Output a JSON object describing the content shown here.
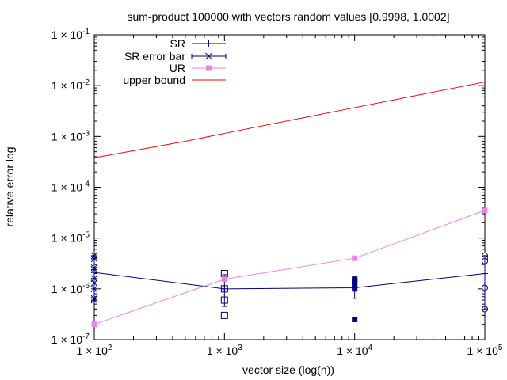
{
  "chart_data": {
    "type": "line",
    "title": "sum-product 100000 with vectors random values [0.9998, 1.0002]",
    "xlabel": "vector size (log(n))",
    "ylabel": "relative error log",
    "x_scale": "log",
    "y_scale": "log",
    "xlim": [
      100,
      100000
    ],
    "ylim": [
      1e-07,
      0.1
    ],
    "grid": false,
    "legend_position": "top-left",
    "x_ticks": [
      {
        "value": 100,
        "base": "1 × 10",
        "exp": "2"
      },
      {
        "value": 1000,
        "base": "1 × 10",
        "exp": "3"
      },
      {
        "value": 10000,
        "base": "1 × 10",
        "exp": "4"
      },
      {
        "value": 100000,
        "base": "1 × 10",
        "exp": "5"
      }
    ],
    "y_ticks": [
      {
        "value": 1e-07,
        "base": "1 × 10",
        "exp": "-7"
      },
      {
        "value": 1e-06,
        "base": "1 × 10",
        "exp": "-6"
      },
      {
        "value": 1e-05,
        "base": "1 × 10",
        "exp": "-5"
      },
      {
        "value": 0.0001,
        "base": "1 × 10",
        "exp": "-4"
      },
      {
        "value": 0.001,
        "base": "1 × 10",
        "exp": "-3"
      },
      {
        "value": 0.01,
        "base": "1 × 10",
        "exp": "-2"
      },
      {
        "value": 0.1,
        "base": "1 × 10",
        "exp": "-1"
      }
    ],
    "series": [
      {
        "name": "SR",
        "color": "#000080",
        "marker": "plus",
        "line": true,
        "x": [
          100,
          1000,
          10000,
          100000
        ],
        "y": [
          2.1e-06,
          1e-06,
          1.05e-06,
          2e-06
        ]
      },
      {
        "name": "SR error bar",
        "color": "#000080",
        "marker": "cross",
        "line": false,
        "error_bars": [
          {
            "x": 100,
            "y": 2.1e-06,
            "low": 6e-07,
            "high": 4.5e-06
          },
          {
            "x": 1000,
            "y": 1e-06,
            "low": 4.5e-07,
            "high": 1.9e-06
          },
          {
            "x": 10000,
            "y": 1.05e-06,
            "low": 6.5e-07,
            "high": 1.5e-06
          },
          {
            "x": 100000,
            "y": 2e-06,
            "low": 4e-07,
            "high": 4.5e-06
          }
        ]
      },
      {
        "name": "UR",
        "color": "#ee82ee",
        "marker": "filled-square",
        "line": true,
        "x": [
          100,
          1000,
          10000,
          100000
        ],
        "y": [
          2e-07,
          1.55e-06,
          4e-06,
          3.5e-05
        ]
      },
      {
        "name": "upper bound",
        "color": "#ff0000",
        "marker": "none",
        "line": true,
        "x": [
          100,
          500,
          1000,
          8000,
          100000
        ],
        "y": [
          0.00038,
          0.0008,
          0.00115,
          0.0033,
          0.0118
        ]
      }
    ],
    "samples": [
      {
        "marker": "x-star",
        "x": 100,
        "y": [
          4.5e-06,
          3.9e-06,
          2.6e-06,
          2.4e-06,
          1.6e-06,
          1.3e-06,
          1e-06,
          6.5e-07,
          6e-07
        ]
      },
      {
        "marker": "open-square",
        "x": 1000,
        "y": [
          2e-06,
          1e-06,
          6e-07,
          3e-07
        ]
      },
      {
        "marker": "filled-square",
        "x": 10000,
        "y": [
          1.55e-06,
          1.45e-06,
          1.3e-06,
          1.2e-06,
          1e-06,
          2.5e-07
        ]
      },
      {
        "marker": "open-circle",
        "x": 100000,
        "y": [
          4.5e-06,
          4e-06,
          3.5e-06,
          1.05e-06,
          4e-07
        ]
      }
    ]
  }
}
